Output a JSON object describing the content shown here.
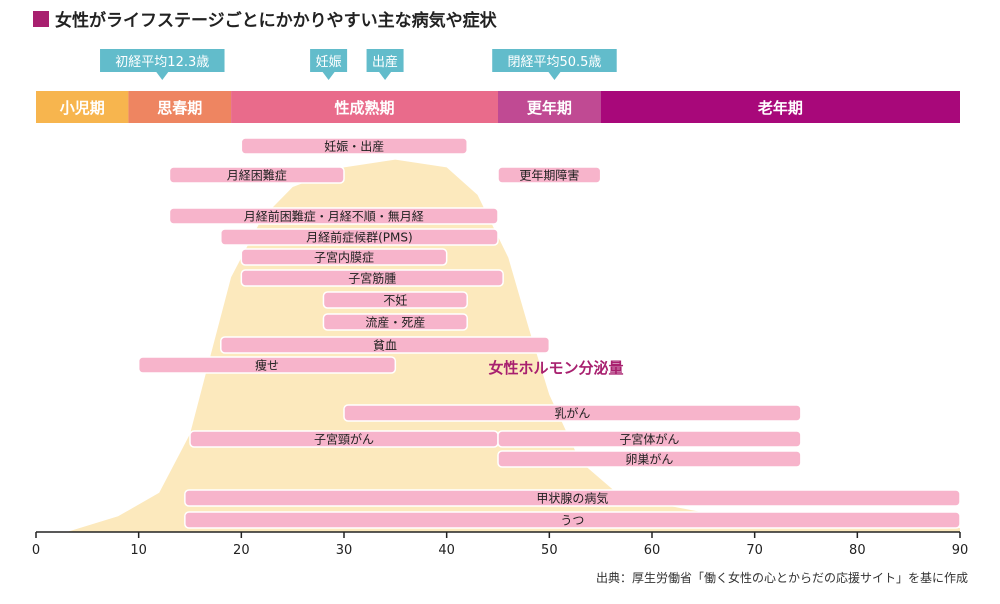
{
  "title": "女性がライフステージごとにかかりやすい主な病気や症状",
  "source": "出典：厚生労働省「働く女性の心とからだの応援サイト」を基に作成",
  "colors": {
    "title_square": "#a8206f",
    "bar_fill": "#f7b4cb",
    "bar_stroke": "#ffffff",
    "hormone_fill": "#fce9bd",
    "hormone_label": "#a8206f",
    "callout": "#62bccb",
    "axis": "#222222"
  },
  "callouts": [
    {
      "label": "初経平均12.3歳",
      "age": 12.3
    },
    {
      "label": "妊娠",
      "age": 28.5
    },
    {
      "label": "出産",
      "age": 34
    },
    {
      "label": "閉経平均50.5歳",
      "age": 50.5
    }
  ],
  "chart_data": {
    "type": "timeline",
    "x_axis": {
      "min": 0,
      "max": 90,
      "ticks": [
        0,
        10,
        20,
        30,
        40,
        50,
        60,
        70,
        80,
        90
      ]
    },
    "life_stages": [
      {
        "label": "小児期",
        "start": 0,
        "end": 9,
        "color": "#f7b54e"
      },
      {
        "label": "思春期",
        "start": 9,
        "end": 19,
        "color": "#ee8561"
      },
      {
        "label": "性成熟期",
        "start": 19,
        "end": 45,
        "color": "#e96b8b"
      },
      {
        "label": "更年期",
        "start": 45,
        "end": 55,
        "color": "#c04a93"
      },
      {
        "label": "老年期",
        "start": 55,
        "end": 90,
        "color": "#a8087a"
      }
    ],
    "hormone_curve": {
      "label": "女性ホルモン分泌量",
      "points": [
        [
          3,
          0
        ],
        [
          8,
          4
        ],
        [
          12,
          10
        ],
        [
          15,
          25
        ],
        [
          17,
          45
        ],
        [
          19,
          65
        ],
        [
          22,
          80
        ],
        [
          25,
          88
        ],
        [
          30,
          93
        ],
        [
          35,
          95
        ],
        [
          40,
          93
        ],
        [
          43,
          86
        ],
        [
          46,
          70
        ],
        [
          48,
          52
        ],
        [
          50,
          35
        ],
        [
          53,
          18
        ],
        [
          57,
          9
        ],
        [
          65,
          5
        ],
        [
          75,
          3
        ],
        [
          85,
          1.5
        ],
        [
          90,
          1
        ]
      ]
    },
    "conditions": [
      {
        "label": "妊娠・出産",
        "start": 20,
        "end": 42,
        "lane": 0
      },
      {
        "label": "月経困難症",
        "start": 13,
        "end": 30,
        "lane": 1
      },
      {
        "label": "更年期障害",
        "start": 45,
        "end": 55,
        "lane": 1
      },
      {
        "label": "月経前困難症・月経不順・無月経",
        "start": 13,
        "end": 45,
        "lane": 2
      },
      {
        "label": "月経前症候群(PMS)",
        "start": 18,
        "end": 45,
        "lane": 3
      },
      {
        "label": "子宮内膜症",
        "start": 20,
        "end": 40,
        "lane": 4
      },
      {
        "label": "子宮筋腫",
        "start": 20,
        "end": 45.5,
        "lane": 5
      },
      {
        "label": "不妊",
        "start": 28,
        "end": 42,
        "lane": 6
      },
      {
        "label": "流産・死産",
        "start": 28,
        "end": 42,
        "lane": 7
      },
      {
        "label": "貧血",
        "start": 18,
        "end": 50,
        "lane": 8
      },
      {
        "label": "痩せ",
        "start": 10,
        "end": 35,
        "lane": 9
      },
      {
        "label": "乳がん",
        "start": 30,
        "end": 74.5,
        "lane": 10
      },
      {
        "label": "子宮頸がん",
        "start": 15,
        "end": 45,
        "lane": 11
      },
      {
        "label": "子宮体がん",
        "start": 45,
        "end": 74.5,
        "lane": 11
      },
      {
        "label": "卵巣がん",
        "start": 45,
        "end": 74.5,
        "lane": 12
      },
      {
        "label": "甲状腺の病気",
        "start": 14.5,
        "end": 90,
        "lane": 13
      },
      {
        "label": "うつ",
        "start": 14.5,
        "end": 90,
        "lane": 14
      }
    ]
  }
}
